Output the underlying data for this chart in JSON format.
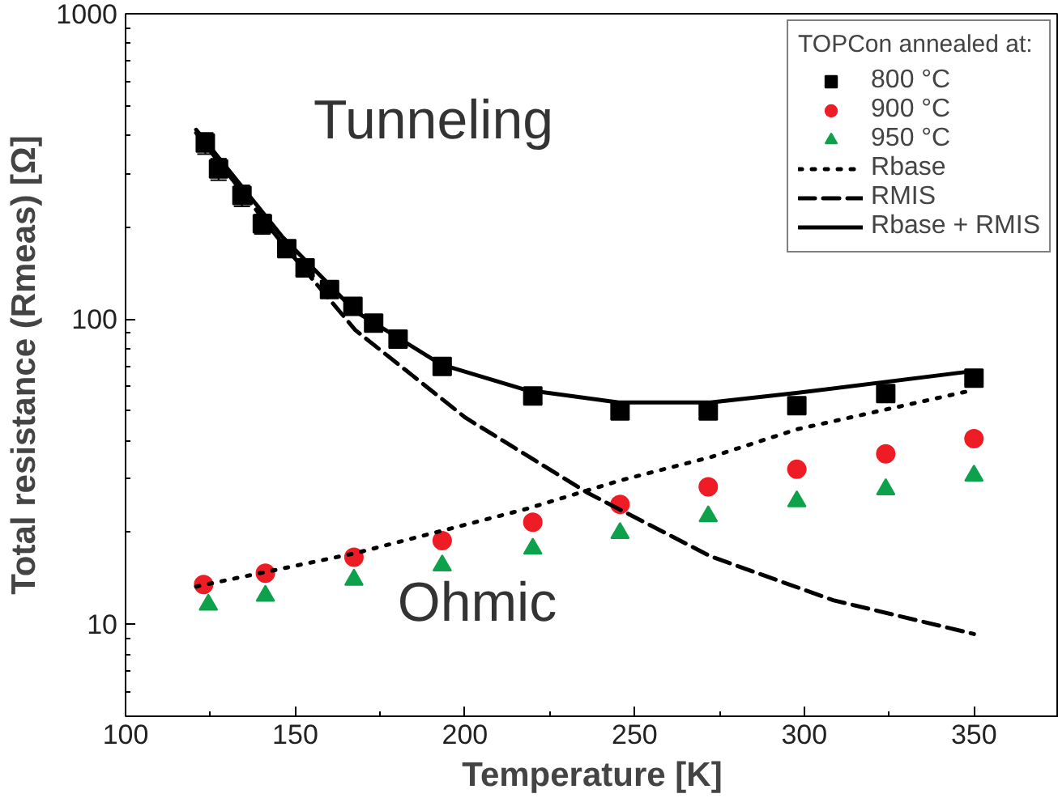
{
  "chart_data": {
    "type": "scatter",
    "xlabel": "Temperature [K]",
    "ylabel": "Total resistance (Rmeas) [Ω]",
    "legend_title": "TOPCon annealed at:",
    "legend": "top right",
    "log": "y",
    "grid": false,
    "xlim": [
      100,
      375
    ],
    "ylim": [
      5,
      1000
    ],
    "xticks": [
      100,
      150,
      200,
      250,
      300,
      350
    ],
    "yticks": [
      10,
      100,
      1000
    ],
    "series": [
      {
        "name": "800 °C",
        "marker": "square",
        "color": "#000000",
        "x": [
          123.5,
          127.4,
          134.3,
          140.3,
          147.5,
          152.9,
          160.1,
          167,
          173.1,
          180.3,
          193.3,
          220,
          245.7,
          271.7,
          297.8,
          324,
          350
        ],
        "values": [
          377,
          310,
          254,
          205,
          170,
          147,
          125,
          110,
          97,
          86,
          70,
          56,
          50,
          50,
          52,
          57,
          64
        ],
        "errors": [
          30,
          25,
          20,
          15,
          null,
          null,
          null,
          null,
          null,
          null,
          null,
          null,
          null,
          null,
          null,
          null,
          null
        ]
      },
      {
        "name": "900 °C",
        "marker": "circle",
        "color": "#ee1c25",
        "x": [
          123,
          141.2,
          167.3,
          193.3,
          220,
          245.7,
          271.7,
          297.8,
          324,
          350
        ],
        "values": [
          13.5,
          14.7,
          16.6,
          18.8,
          21.6,
          24.7,
          28.2,
          32.2,
          36.2,
          40.6
        ]
      },
      {
        "name": "950 °C",
        "marker": "triangle",
        "color": "#0ea14b",
        "x": [
          124.4,
          141.2,
          167.3,
          193.3,
          220,
          245.7,
          271.7,
          297.8,
          324,
          350
        ],
        "values": [
          11.6,
          12.4,
          14.0,
          15.6,
          17.7,
          19.9,
          22.6,
          25.3,
          27.7,
          30.7
        ]
      },
      {
        "name": "Rbase",
        "type": "line",
        "line_style": "dotted",
        "color": "#000000",
        "x": [
          120.8,
          167.7,
          218.2,
          245.3,
          272.4,
          297.7,
          350
        ],
        "values": [
          13.3,
          17.1,
          23.9,
          29.5,
          35.3,
          43.5,
          58.6
        ]
      },
      {
        "name": "RMIS",
        "type": "line",
        "line_style": "dashed",
        "color": "#000000",
        "x": [
          120.8,
          146,
          167.7,
          200.2,
          236.3,
          272.4,
          308.5,
          350
        ],
        "values": [
          407,
          178,
          92,
          47.5,
          26.9,
          16.7,
          12.0,
          9.3
        ]
      },
      {
        "name": "Rbase + RMIS",
        "type": "line",
        "line_style": "solid",
        "color": "#000000",
        "x": [
          120.8,
          146,
          167.7,
          193,
          218,
          245.3,
          272.4,
          297.7,
          350
        ],
        "values": [
          417,
          187,
          106,
          71,
          58.6,
          53.3,
          53.3,
          57.3,
          67.6
        ]
      }
    ],
    "annotations": [
      "Tunneling",
      "Ohmic"
    ]
  }
}
